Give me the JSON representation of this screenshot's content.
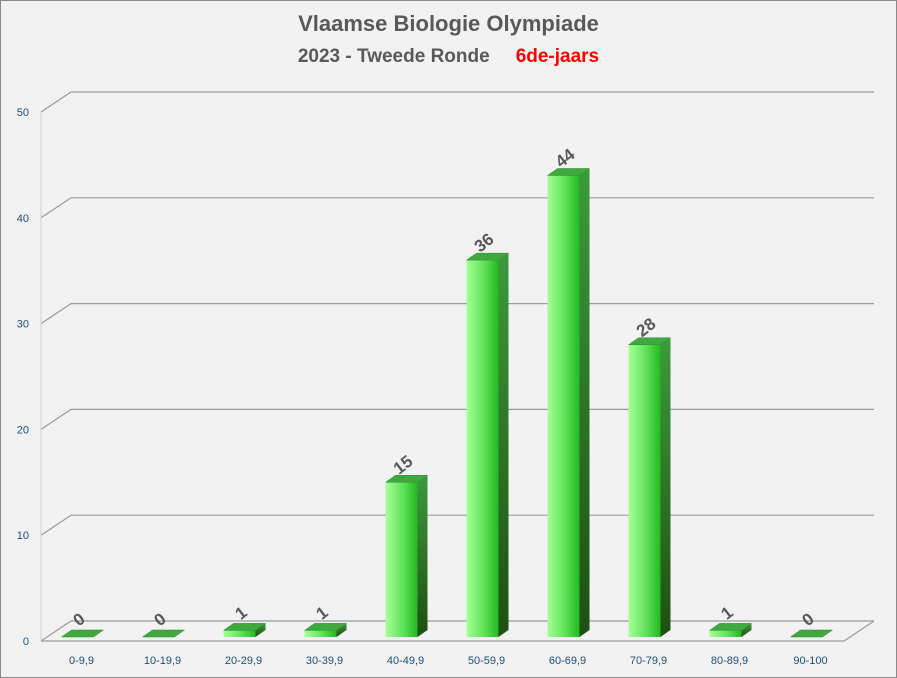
{
  "chart_data": {
    "type": "bar",
    "title": "Vlaamse Biologie Olympiade",
    "subtitle": "2023 - Tweede Ronde",
    "subtitle_highlight": "6de-jaars",
    "categories": [
      "0-9,9",
      "10-19,9",
      "20-29,9",
      "30-39,9",
      "40-49,9",
      "50-59,9",
      "60-69,9",
      "70-79,9",
      "80-89,9",
      "90-100"
    ],
    "values": [
      0,
      0,
      1,
      1,
      15,
      36,
      44,
      28,
      1,
      0
    ],
    "data_labels": [
      "0",
      "0",
      "1",
      "1",
      "15",
      "36",
      "44",
      "28",
      "1",
      "0"
    ],
    "xlabel": "",
    "ylabel": "",
    "ylim": [
      0,
      50
    ],
    "yticks": [
      0,
      10,
      20,
      30,
      40,
      50
    ],
    "grid": true,
    "legend": "none",
    "colors": {
      "bar_front_light": "#a8ff98",
      "bar_front_dark": "#23c423",
      "bar_side": "#1e7a1e",
      "bar_top": "#3fa83f",
      "label_highlight": "#ff0000",
      "text": "#595959"
    }
  }
}
